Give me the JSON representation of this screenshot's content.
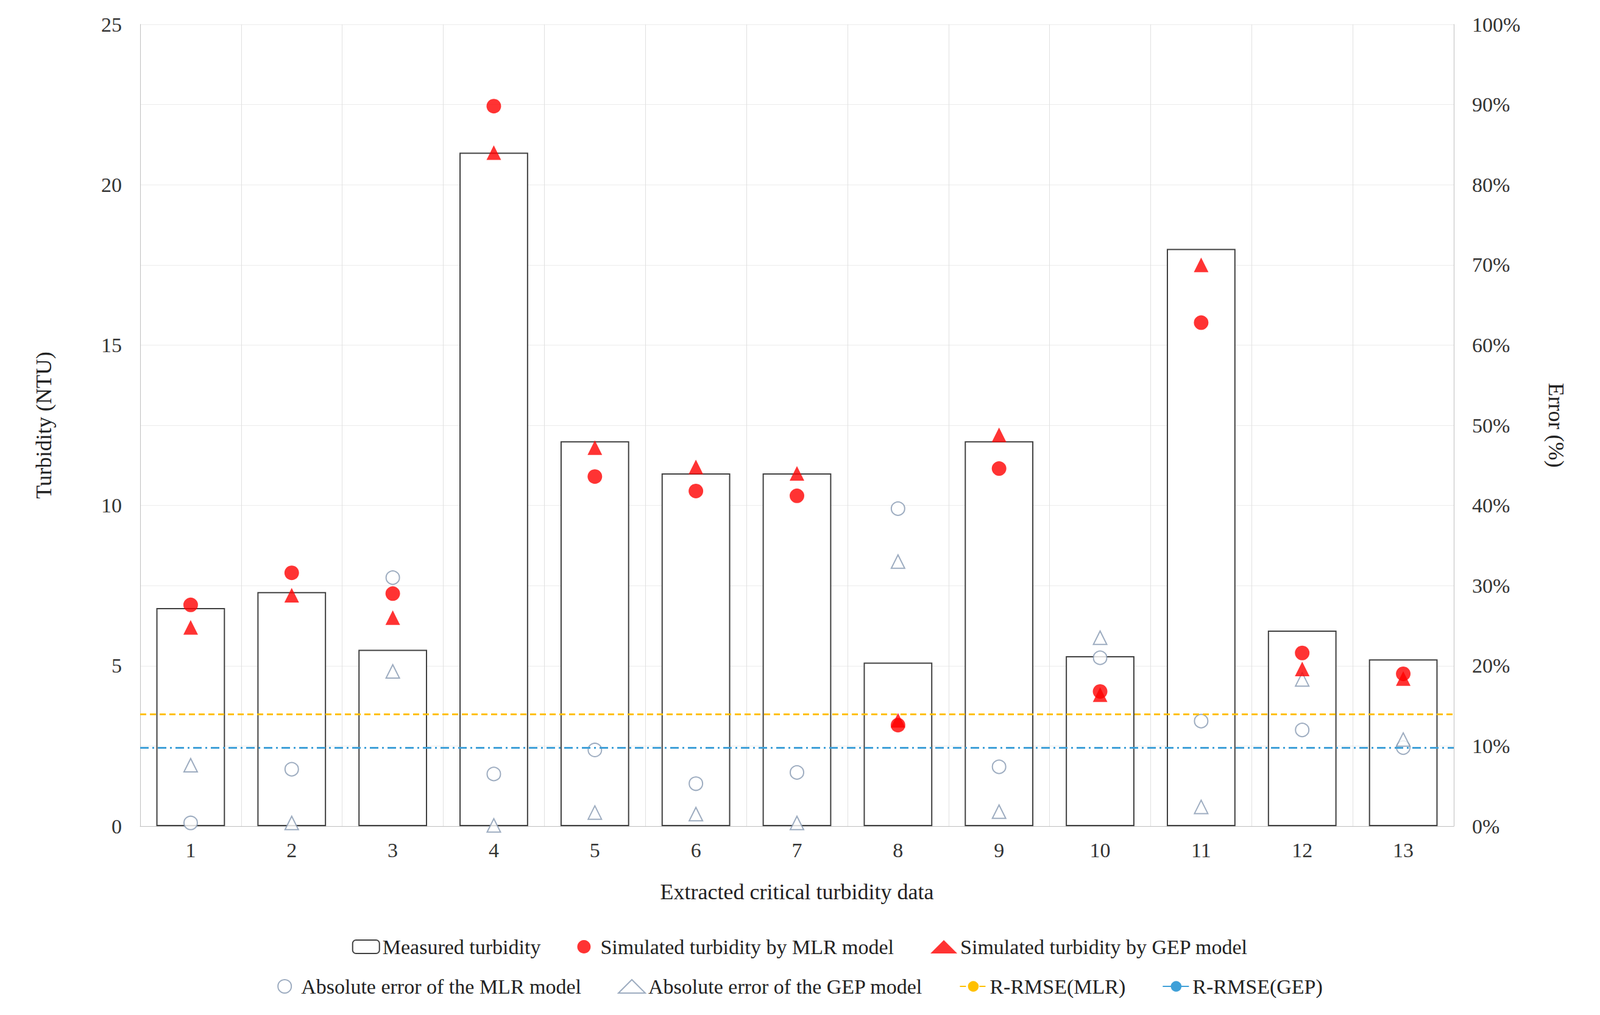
{
  "chart_data": {
    "type": "bar",
    "x_label": "Extracted critical turbidity data",
    "y_label": "Turbidity (NTU)",
    "y2_label": "Error (%)",
    "categories": [
      "1",
      "2",
      "3",
      "4",
      "5",
      "6",
      "7",
      "8",
      "9",
      "10",
      "11",
      "12",
      "13"
    ],
    "ylim": [
      0,
      25
    ],
    "yticks": [
      0,
      5,
      10,
      15,
      20,
      25
    ],
    "y2lim": [
      0,
      100
    ],
    "y2ticks": [
      {
        "value": 0,
        "label": "0%"
      },
      {
        "value": 10,
        "label": "10%"
      },
      {
        "value": 20,
        "label": "20%"
      },
      {
        "value": 30,
        "label": "30%"
      },
      {
        "value": 40,
        "label": "40%"
      },
      {
        "value": 50,
        "label": "50%"
      },
      {
        "value": 60,
        "label": "60%"
      },
      {
        "value": 70,
        "label": "70%"
      },
      {
        "value": 80,
        "label": "80%"
      },
      {
        "value": 90,
        "label": "90%"
      },
      {
        "value": 100,
        "label": "100%"
      }
    ],
    "grid": true,
    "legend": "bottom",
    "series": [
      {
        "name": "Measured turbidity",
        "type": "bar",
        "color": "#404040",
        "values": [
          6.8,
          7.3,
          5.5,
          21.0,
          12.0,
          11.0,
          11.0,
          5.1,
          12.0,
          5.3,
          18.0,
          6.1,
          5.2
        ]
      },
      {
        "name": "Simulated turbidity by MLR model",
        "type": "scatter",
        "marker": "circle",
        "color": "#ff0000",
        "values": [
          6.9,
          7.9,
          7.25,
          22.45,
          10.9,
          10.45,
          10.3,
          3.15,
          11.15,
          4.2,
          15.7,
          5.4,
          4.75
        ]
      },
      {
        "name": "Simulated turbidity by GEP model",
        "type": "scatter",
        "marker": "triangle",
        "color": "#ff0000",
        "values": [
          6.2,
          7.2,
          6.5,
          21.0,
          11.8,
          11.2,
          11.0,
          3.3,
          12.2,
          4.1,
          17.5,
          4.9,
          4.6
        ]
      },
      {
        "name": "Absolute error of the MLR model",
        "type": "scatter",
        "marker": "empty_circle",
        "color": "#8497b0",
        "axis": "y2",
        "values": [
          0.4,
          7.1,
          31.0,
          6.5,
          9.5,
          5.3,
          6.7,
          39.6,
          7.4,
          21.0,
          13.1,
          12.0,
          9.8
        ]
      },
      {
        "name": "Absolute error of the GEP model",
        "type": "scatter",
        "marker": "empty_triangle",
        "color": "#8497b0",
        "axis": "y2",
        "values": [
          7.6,
          0.4,
          19.3,
          0.1,
          1.7,
          1.5,
          0.4,
          33.0,
          1.8,
          23.5,
          2.4,
          18.3,
          10.8
        ]
      },
      {
        "name": "R-RMSE(MLR)",
        "type": "hline",
        "color": "#ffc000",
        "line_style": "dashed",
        "axis": "y2",
        "value": 14.0
      },
      {
        "name": "R-RMSE(GEP)",
        "type": "hline",
        "color": "#3fa0d8",
        "line_style": "dashdot",
        "axis": "y2",
        "value": 9.8
      }
    ]
  }
}
